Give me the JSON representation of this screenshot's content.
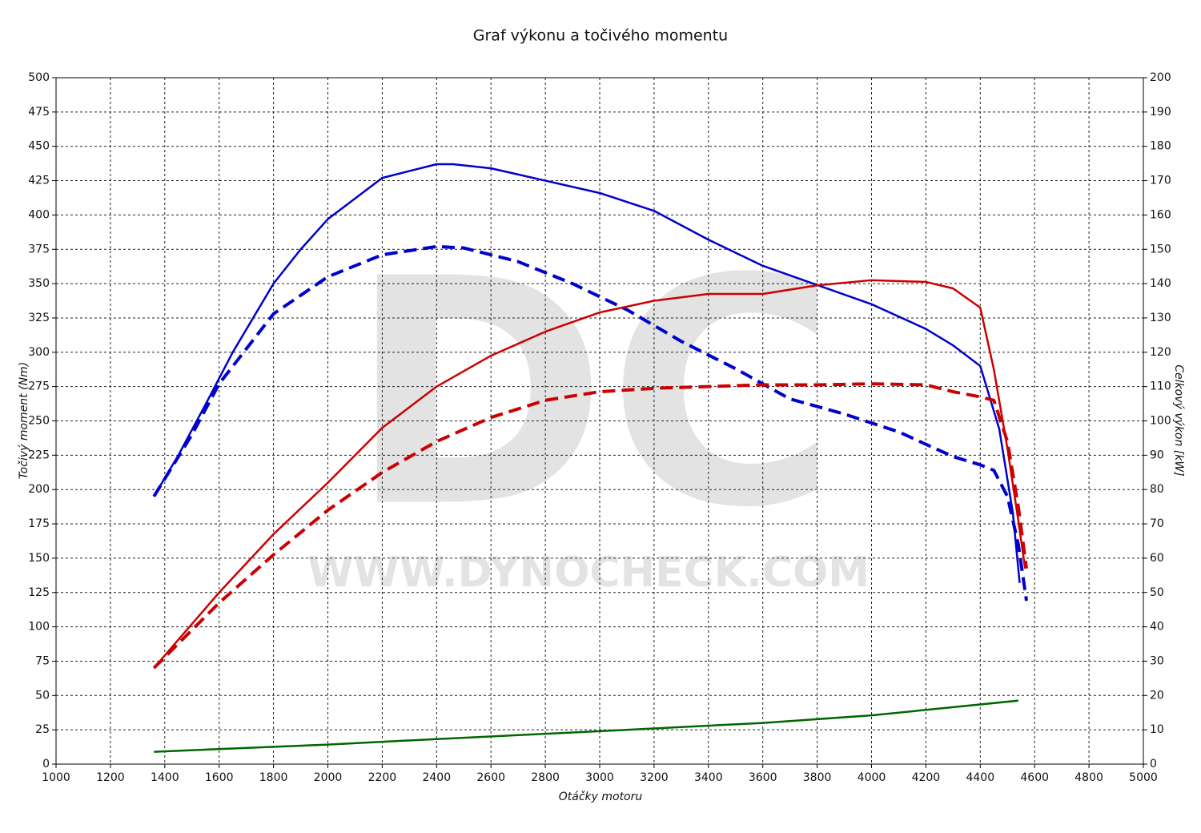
{
  "chart_data": {
    "type": "line",
    "title": "Graf výkonu a točivého momentu",
    "x_label": "Otáčky motoru",
    "y_label": "Točivý moment (Nm)",
    "y2_label": "Celkový výkon [kW]",
    "watermark_logo": "DC",
    "watermark_text": "WWW.DYNOCHECK.COM",
    "xlim": [
      1000,
      5000
    ],
    "xticks": [
      1000,
      1200,
      1400,
      1600,
      1800,
      2000,
      2200,
      2400,
      2600,
      2800,
      3000,
      3200,
      3400,
      3600,
      3800,
      4000,
      4200,
      4400,
      4600,
      4800,
      5000
    ],
    "ylim": [
      0,
      500
    ],
    "yticks": [
      0,
      25,
      50,
      75,
      100,
      125,
      150,
      175,
      200,
      225,
      250,
      275,
      300,
      325,
      350,
      375,
      400,
      425,
      450,
      475,
      500
    ],
    "y2lim": [
      0,
      200
    ],
    "y2ticks": [
      0,
      10,
      20,
      30,
      40,
      50,
      60,
      70,
      80,
      90,
      100,
      110,
      120,
      130,
      140,
      150,
      160,
      170,
      180,
      190,
      200
    ],
    "grid": true,
    "series": [
      {
        "color": "#0000cc",
        "dashed": false,
        "x": [
          1360,
          1450,
          1550,
          1650,
          1800,
          1900,
          2000,
          2200,
          2400,
          2460,
          2600,
          2800,
          3000,
          3200,
          3400,
          3600,
          3800,
          4000,
          4200,
          4300,
          4400,
          4470,
          4520,
          4545
        ],
        "values": [
          195,
          225,
          262,
          300,
          350,
          375,
          397,
          427,
          437,
          437,
          434,
          425,
          416,
          403,
          382,
          363,
          349,
          335,
          317,
          305,
          290,
          244,
          183,
          132
        ]
      },
      {
        "color": "#0000cc",
        "dashed": true,
        "x": [
          1360,
          1500,
          1600,
          1800,
          2000,
          2200,
          2400,
          2500,
          2700,
          2900,
          3100,
          3300,
          3500,
          3700,
          3900,
          4100,
          4200,
          4300,
          4400,
          4450,
          4500,
          4540,
          4570
        ],
        "values": [
          195,
          240,
          277,
          328,
          355,
          371,
          377,
          376,
          366,
          350,
          331,
          308,
          288,
          266,
          255,
          242,
          233,
          224,
          218,
          214,
          195,
          160,
          119
        ]
      },
      {
        "color": "#cc0000",
        "dashed": false,
        "axis": "y2",
        "x": [
          1360,
          1600,
          1800,
          2000,
          2200,
          2400,
          2600,
          2800,
          3000,
          3200,
          3400,
          3600,
          3800,
          4000,
          4200,
          4300,
          4400,
          4450,
          4500,
          4540,
          4565
        ],
        "values": [
          28,
          50,
          67,
          82,
          98,
          110,
          119,
          126,
          131.6,
          135,
          137,
          137,
          139.5,
          141,
          140.5,
          138.6,
          133,
          115,
          92,
          71,
          57
        ]
      },
      {
        "color": "#cc0000",
        "dashed": true,
        "axis": "y2",
        "x": [
          1360,
          1600,
          1800,
          2000,
          2200,
          2400,
          2600,
          2800,
          3000,
          3200,
          3400,
          3600,
          3800,
          4000,
          4200,
          4300,
          4400,
          4450,
          4500,
          4540,
          4570
        ],
        "values": [
          28,
          47,
          61,
          74,
          85,
          94,
          101,
          106,
          108.5,
          109.5,
          110,
          110.5,
          110.5,
          110.8,
          110.5,
          108.5,
          107,
          106,
          94,
          75,
          57
        ]
      },
      {
        "color": "#006600",
        "dashed": false,
        "axis": "y2",
        "x": [
          1360,
          2000,
          2400,
          3000,
          3600,
          4000,
          4540
        ],
        "values": [
          3.6,
          5.7,
          7.3,
          9.6,
          12,
          14.2,
          18.5
        ]
      }
    ]
  }
}
